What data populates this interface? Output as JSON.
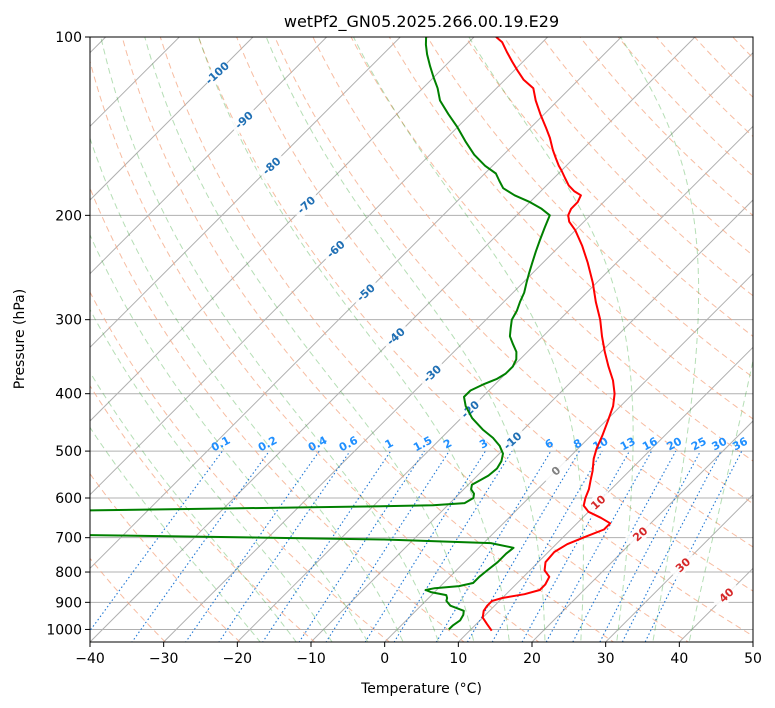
{
  "chart_data": {
    "type": "line",
    "title": "wetPf2_GN05.2025.266.00.19.E29",
    "xlabel": "Temperature (°C)",
    "ylabel": "Pressure (hPa)",
    "xlim": [
      -40,
      50
    ],
    "ylim": [
      1050,
      100
    ],
    "y_scale": "log",
    "skew": true,
    "grid": true,
    "x_ticks": [
      -40,
      -30,
      -20,
      -10,
      0,
      10,
      20,
      30,
      40,
      50
    ],
    "y_ticks": [
      1000,
      900,
      800,
      700,
      600,
      500,
      400,
      300,
      200,
      100
    ],
    "series": [
      {
        "color": "#ff0000",
        "points": [
          [
            13.0,
            1005
          ],
          [
            11.5,
            980
          ],
          [
            10.0,
            955
          ],
          [
            9.2,
            930
          ],
          [
            9.0,
            912
          ],
          [
            9.0,
            895
          ],
          [
            10.0,
            885
          ],
          [
            12.5,
            872
          ],
          [
            14.0,
            858
          ],
          [
            14.0,
            840
          ],
          [
            13.5,
            815
          ],
          [
            12.0,
            795
          ],
          [
            11.0,
            770
          ],
          [
            10.8,
            740
          ],
          [
            11.5,
            718
          ],
          [
            13.0,
            697
          ],
          [
            14.5,
            678
          ],
          [
            14.5,
            662
          ],
          [
            12.5,
            648
          ],
          [
            10.0,
            633
          ],
          [
            8.5,
            618
          ],
          [
            7.7,
            600
          ],
          [
            7.0,
            580
          ],
          [
            6.0,
            560
          ],
          [
            5.0,
            540
          ],
          [
            3.5,
            515
          ],
          [
            2.5,
            495
          ],
          [
            1.5,
            470
          ],
          [
            0.3,
            445
          ],
          [
            -1.0,
            420
          ],
          [
            -2.5,
            400
          ],
          [
            -4.5,
            380
          ],
          [
            -7.0,
            360
          ],
          [
            -9.5,
            340
          ],
          [
            -12.0,
            320
          ],
          [
            -14.5,
            300
          ],
          [
            -17.5,
            280
          ],
          [
            -20.5,
            260
          ],
          [
            -24.0,
            240
          ],
          [
            -27.0,
            225
          ],
          [
            -30.0,
            212
          ],
          [
            -32.0,
            205
          ],
          [
            -33.0,
            200
          ],
          [
            -33.5,
            195
          ],
          [
            -33.5,
            190
          ],
          [
            -34.0,
            185
          ],
          [
            -35.5,
            182
          ],
          [
            -37.0,
            178
          ],
          [
            -38.5,
            173
          ],
          [
            -40.0,
            168
          ],
          [
            -41.0,
            165
          ],
          [
            -42.5,
            160
          ],
          [
            -44.0,
            155
          ],
          [
            -46.0,
            148
          ],
          [
            -48.0,
            142
          ],
          [
            -50.5,
            135
          ],
          [
            -53.0,
            128
          ],
          [
            -55.0,
            122
          ],
          [
            -57.5,
            118
          ],
          [
            -59.5,
            114
          ],
          [
            -61.5,
            110
          ],
          [
            -63.5,
            106
          ],
          [
            -65.5,
            102
          ],
          [
            -67.0,
            100
          ]
        ]
      },
      {
        "color": "#008000",
        "points": [
          [
            7.0,
            1000
          ],
          [
            7.0,
            985
          ],
          [
            7.3,
            965
          ],
          [
            7.0,
            945
          ],
          [
            6.5,
            930
          ],
          [
            4.0,
            912
          ],
          [
            2.8,
            895
          ],
          [
            2.5,
            885
          ],
          [
            2.0,
            875
          ],
          [
            -0.5,
            865
          ],
          [
            -1.5,
            858
          ],
          [
            -0.5,
            852
          ],
          [
            2.5,
            845
          ],
          [
            4.0,
            835
          ],
          [
            4.0,
            815
          ],
          [
            4.2,
            795
          ],
          [
            4.5,
            770
          ],
          [
            4.5,
            745
          ],
          [
            4.7,
            728
          ],
          [
            1.0,
            715
          ],
          [
            -14.0,
            705
          ],
          [
            -40.0,
            697
          ],
          [
            -65.0,
            690
          ],
          [
            -80.0,
            685
          ],
          [
            -80.0,
            638
          ],
          [
            -60.0,
            630
          ],
          [
            -40.0,
            625
          ],
          [
            -20.0,
            620
          ],
          [
            -12.0,
            617
          ],
          [
            -8.0,
            612
          ],
          [
            -7.5,
            600
          ],
          [
            -8.0,
            590
          ],
          [
            -9.0,
            580
          ],
          [
            -9.5,
            570
          ],
          [
            -9.0,
            560
          ],
          [
            -8.5,
            550
          ],
          [
            -8.3,
            535
          ],
          [
            -8.7,
            520
          ],
          [
            -9.5,
            505
          ],
          [
            -11.0,
            490
          ],
          [
            -13.0,
            475
          ],
          [
            -15.5,
            460
          ],
          [
            -18.5,
            440
          ],
          [
            -21.0,
            420
          ],
          [
            -22.5,
            405
          ],
          [
            -22.5,
            395
          ],
          [
            -21.5,
            385
          ],
          [
            -20.5,
            378
          ],
          [
            -20.0,
            370
          ],
          [
            -20.0,
            360
          ],
          [
            -20.5,
            350
          ],
          [
            -21.5,
            340
          ],
          [
            -23.0,
            330
          ],
          [
            -24.5,
            320
          ],
          [
            -25.5,
            310
          ],
          [
            -26.5,
            300
          ],
          [
            -27.0,
            290
          ],
          [
            -27.8,
            280
          ],
          [
            -28.5,
            270
          ],
          [
            -29.5,
            260
          ],
          [
            -30.5,
            250
          ],
          [
            -31.5,
            240
          ],
          [
            -32.5,
            230
          ],
          [
            -33.5,
            220
          ],
          [
            -34.5,
            210
          ],
          [
            -35.5,
            200
          ],
          [
            -37.5,
            195
          ],
          [
            -40.0,
            190
          ],
          [
            -43.0,
            185
          ],
          [
            -45.5,
            180
          ],
          [
            -47.0,
            175
          ],
          [
            -48.5,
            170
          ],
          [
            -51.0,
            165
          ],
          [
            -54.0,
            158
          ],
          [
            -57.0,
            150
          ],
          [
            -60.0,
            142
          ],
          [
            -63.0,
            135
          ],
          [
            -66.0,
            128
          ],
          [
            -68.0,
            122
          ],
          [
            -70.0,
            117
          ],
          [
            -72.0,
            112
          ],
          [
            -74.0,
            107
          ],
          [
            -75.5,
            103
          ],
          [
            -76.5,
            100
          ]
        ]
      }
    ],
    "dry_adiabats_K": [
      230,
      240,
      250,
      260,
      270,
      280,
      290,
      300,
      310,
      320,
      330,
      340,
      350,
      360,
      370,
      380,
      390,
      400,
      410,
      420,
      430,
      440,
      450,
      460,
      470,
      480,
      500,
      520
    ],
    "moist_adiabats_C": [
      -20,
      -15,
      -10,
      -5,
      0,
      5,
      10,
      15,
      20,
      25,
      30,
      35,
      40
    ],
    "mixing_ratio_lines": {
      "pressure_top": 500,
      "values": [
        0.1,
        0.2,
        0.4,
        0.6,
        1,
        1.5,
        2,
        3,
        4,
        6,
        8,
        10,
        13,
        16,
        20,
        25,
        30,
        36
      ],
      "labels": [
        "0.1",
        "0.2",
        "0.4",
        "0.6",
        "1",
        "1.5",
        "2",
        "3",
        "4",
        "6",
        "8",
        "10",
        "13",
        "16",
        "20",
        "25",
        "30",
        "36"
      ]
    },
    "isotherm_label_list": [
      {
        "value": -100,
        "text": "-100",
        "p": 115
      },
      {
        "value": -90,
        "text": "-90",
        "p": 138
      },
      {
        "value": -80,
        "text": "-80",
        "p": 165
      },
      {
        "value": -70,
        "text": "-70",
        "p": 192
      },
      {
        "value": -60,
        "text": "-60",
        "p": 228
      },
      {
        "value": -50,
        "text": "-50",
        "p": 270
      },
      {
        "value": -40,
        "text": "-40",
        "p": 320
      },
      {
        "value": -30,
        "text": "-30",
        "p": 370
      },
      {
        "value": -20,
        "text": "-20",
        "p": 425
      },
      {
        "value": -10,
        "text": "-10",
        "p": 480
      }
    ],
    "zero_label": {
      "value": 0,
      "text": "0",
      "p": 540
    },
    "warm_isotherm_labels": [
      {
        "value": 10,
        "text": "10",
        "p": 610
      },
      {
        "value": 20,
        "text": "20",
        "p": 690
      },
      {
        "value": 30,
        "text": "30",
        "p": 778
      },
      {
        "value": 40,
        "text": "40",
        "p": 875
      }
    ]
  }
}
